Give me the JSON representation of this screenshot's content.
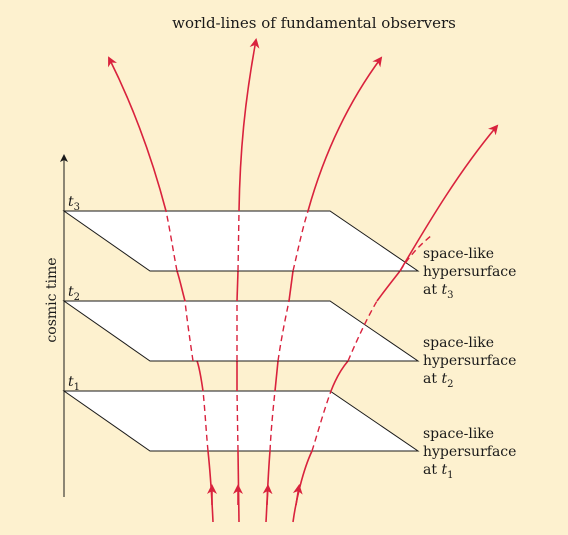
{
  "title": "world-lines of fundamental observers",
  "axis_label": "cosmic time",
  "time_labels": [
    {
      "base": "t",
      "sub": "3"
    },
    {
      "base": "t",
      "sub": "2"
    },
    {
      "base": "t",
      "sub": "1"
    }
  ],
  "hypersurface_labels": [
    {
      "line1": "space-like",
      "line2": "hypersurface",
      "line3_prefix": "at ",
      "t_base": "t",
      "t_sub": "3"
    },
    {
      "line1": "space-like",
      "line2": "hypersurface",
      "line3_prefix": "at ",
      "t_base": "t",
      "t_sub": "2"
    },
    {
      "line1": "space-like",
      "line2": "hypersurface",
      "line3_prefix": "at ",
      "t_base": "t",
      "t_sub": "1"
    }
  ],
  "colors": {
    "background": "#fdf1cf",
    "worldline": "#d9223d",
    "plane_fill": "#ffffff",
    "outline": "#1a1a1a"
  }
}
